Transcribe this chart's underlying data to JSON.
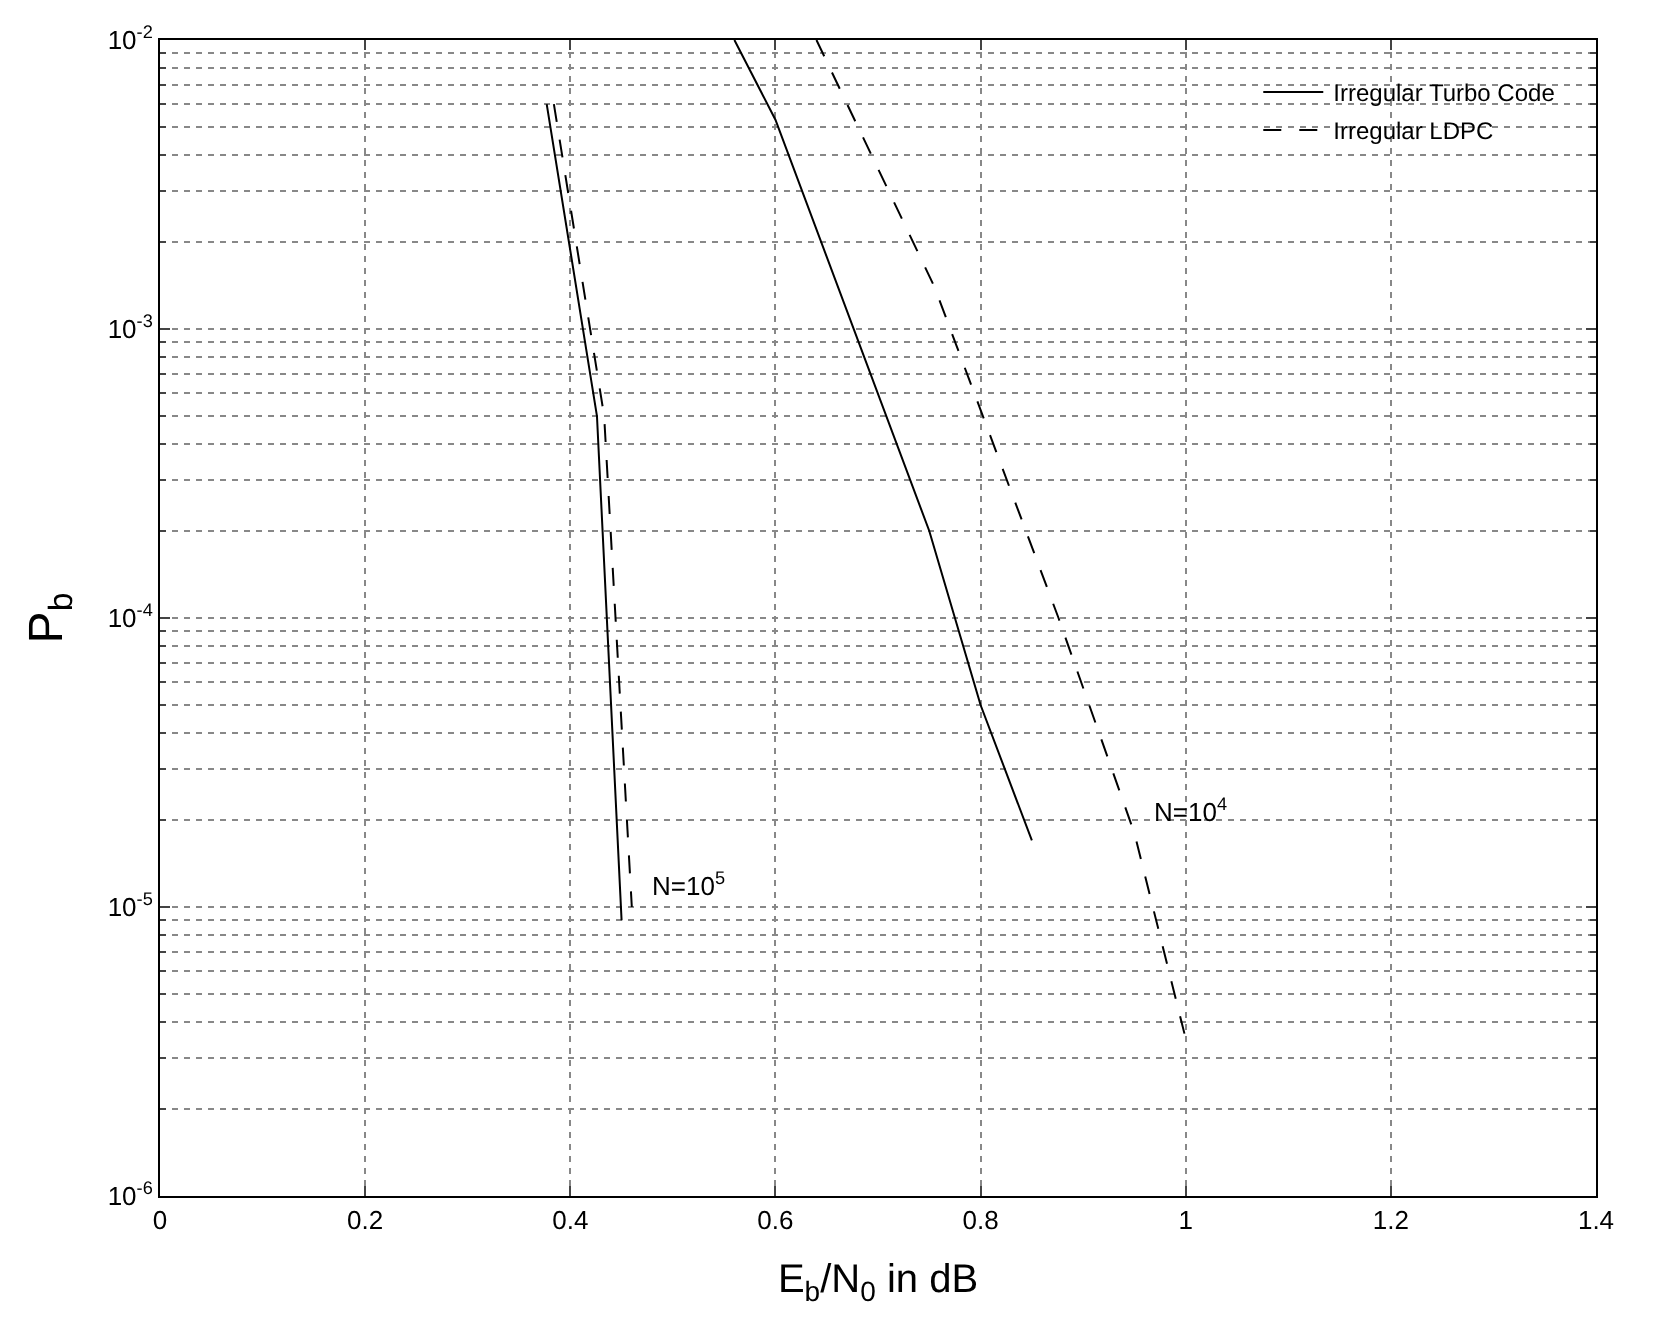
{
  "chart_data": {
    "type": "line",
    "xlabel": "E$_{b}$/N$_{0}$ in dB",
    "ylabel": "P$_{b}$",
    "xlim": [
      0,
      1.4
    ],
    "xticks": [
      0,
      0.2,
      0.4,
      0.6,
      0.8,
      1,
      1.2,
      1.4
    ],
    "ylim": [
      1e-06,
      0.01
    ],
    "log": "y",
    "yticks": [
      {
        "value": 1e-06,
        "label": "10$^{-6}$"
      },
      {
        "value": 1e-05,
        "label": "10$^{-5}$"
      },
      {
        "value": 0.0001,
        "label": "10$^{-4}$"
      },
      {
        "value": 0.001,
        "label": "10$^{-3}$"
      },
      {
        "value": 0.01,
        "label": "10$^{-2}$"
      }
    ],
    "grid": true,
    "legend": "top right",
    "marker": "none",
    "series": [
      {
        "name": "Irregular Turbo Code",
        "color": "#000000",
        "line_style": "solid",
        "x": [
          0.377,
          0.426,
          0.45
        ],
        "values": [
          0.006,
          0.0005,
          9e-06
        ]
      },
      {
        "name": "Irregular LDPC",
        "color": "#000000",
        "line_style": "dashed",
        "x": [
          0.384,
          0.433,
          0.46
        ],
        "values": [
          0.006,
          0.0005,
          1e-05
        ]
      },
      {
        "color": "#000000",
        "line_style": "solid",
        "x": [
          0.56,
          0.6,
          0.75,
          0.8,
          0.85
        ],
        "values": [
          0.01,
          0.0053,
          0.0002,
          5e-05,
          1.7e-05
        ]
      },
      {
        "color": "#000000",
        "line_style": "dashed",
        "x": [
          0.64,
          0.755,
          0.876,
          0.95,
          1.0
        ],
        "values": [
          0.01,
          0.0014,
          0.0001,
          1.8e-05,
          3.5e-06
        ]
      }
    ],
    "annotations": [
      {
        "text": "N=10$^{5}$",
        "x": 0.46,
        "y": 1e-05
      },
      {
        "text": "N=10$^{4}$",
        "x": 0.95,
        "y": 1.8e-05
      }
    ]
  }
}
